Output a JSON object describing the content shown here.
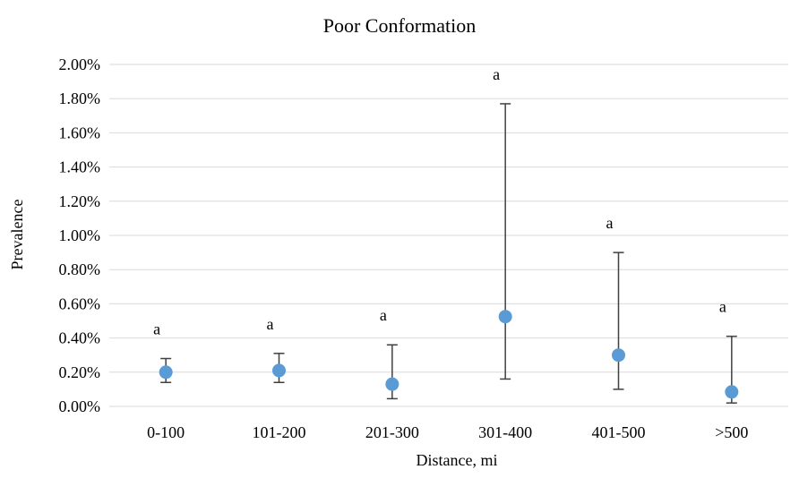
{
  "chart_data": {
    "type": "scatter",
    "title": "Poor Conformation",
    "xlabel": "Distance, mi",
    "ylabel": "Prevalence",
    "categories": [
      "0-100",
      "101-200",
      "201-300",
      "301-400",
      "401-500",
      ">500"
    ],
    "values": [
      0.2,
      0.21,
      0.13,
      0.525,
      0.3,
      0.085
    ],
    "error_low": [
      0.14,
      0.14,
      0.045,
      0.16,
      0.1,
      0.02
    ],
    "error_high": [
      0.28,
      0.31,
      0.36,
      1.77,
      0.9,
      0.41
    ],
    "labels": [
      "a",
      "a",
      "a",
      "a",
      "a",
      "a"
    ],
    "ylim": [
      0,
      2
    ],
    "yticks": [
      "0.00%",
      "0.20%",
      "0.40%",
      "0.60%",
      "0.80%",
      "1.00%",
      "1.20%",
      "1.40%",
      "1.60%",
      "1.80%",
      "2.00%"
    ],
    "grid": true,
    "colors": {
      "marker": "#5b9bd5",
      "errorbar": "#404040",
      "grid": "#d9d9d9"
    }
  }
}
